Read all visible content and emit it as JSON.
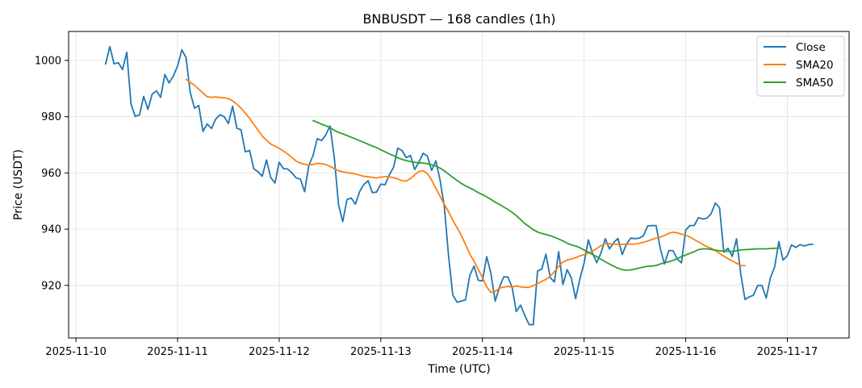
{
  "chart_data": {
    "type": "line",
    "title": "BNBUSDT — 168 candles (1h)",
    "xlabel": "Time (UTC)",
    "ylabel": "Price (USDT)",
    "x_tick_labels": [
      "2025-11-10",
      "2025-11-11",
      "2025-11-12",
      "2025-11-13",
      "2025-11-14",
      "2025-11-15",
      "2025-11-16",
      "2025-11-17"
    ],
    "y_ticks": [
      920,
      940,
      960,
      980,
      1000
    ],
    "xlim": [
      "2025-11-09T22:16",
      "2025-11-17T14:35"
    ],
    "ylim": [
      901.3,
      1010.3
    ],
    "grid": true,
    "legend_position": "top-right",
    "colors": {
      "close": "#1f77b4",
      "sma20": "#ff7f0e",
      "sma50": "#2ca02c"
    },
    "x_start": "2025-11-10T07:00",
    "x_step_hours": 1,
    "series": [
      {
        "name": "Close",
        "color": "#1f77b4",
        "values": [
          998.7,
          1004.9,
          998.8,
          999.2,
          996.8,
          1002.9,
          984.5,
          980.1,
          980.6,
          987.2,
          982.6,
          988.0,
          989.2,
          986.9,
          995.0,
          992.0,
          994.5,
          998.0,
          1003.8,
          1001.0,
          988.6,
          983.0,
          984.0,
          974.8,
          977.4,
          975.8,
          979.1,
          980.7,
          980.0,
          977.6,
          983.7,
          975.9,
          975.3,
          967.5,
          968.0,
          961.5,
          960.4,
          958.8,
          964.6,
          958.4,
          956.4,
          963.8,
          961.5,
          961.4,
          960.0,
          958.2,
          957.8,
          953.3,
          962.6,
          966.2,
          972.2,
          971.5,
          973.5,
          976.7,
          965.7,
          948.8,
          942.7,
          950.5,
          951.1,
          948.9,
          953.4,
          955.9,
          957.2,
          953.0,
          953.2,
          956.0,
          955.8,
          959.3,
          962.0,
          968.8,
          968.0,
          965.4,
          966.2,
          961.2,
          963.9,
          967.0,
          966.0,
          960.9,
          964.3,
          957.4,
          948.0,
          930.4,
          916.6,
          914.0,
          914.4,
          914.9,
          923.5,
          926.9,
          921.8,
          921.6,
          930.2,
          924.3,
          914.4,
          919.2,
          923.0,
          923.0,
          919.3,
          910.7,
          913.0,
          909.3,
          906.1,
          906.0,
          925.1,
          925.8,
          931.1,
          922.8,
          921.2,
          932.0,
          920.3,
          925.6,
          922.6,
          915.3,
          922.2,
          928.0,
          936.2,
          931.4,
          928.1,
          931.5,
          936.6,
          933.0,
          935.2,
          936.7,
          931.0,
          934.6,
          936.8,
          936.6,
          936.8,
          937.6,
          941.1,
          941.3,
          941.3,
          933.1,
          927.6,
          932.4,
          932.4,
          929.4,
          928.0,
          939.7,
          941.3,
          941.3,
          944.1,
          943.6,
          943.9,
          945.5,
          949.3,
          947.6,
          931.8,
          933.2,
          930.3,
          936.6,
          924.1,
          915.0,
          915.9,
          916.5,
          920.0,
          920.0,
          915.5,
          922.7,
          926.6,
          935.6,
          929.0,
          930.6,
          934.4,
          933.5,
          934.5,
          934.0,
          934.5,
          934.7
        ]
      },
      {
        "name": "SMA20",
        "color": "#ff7f0e",
        "values": [
          null,
          null,
          null,
          null,
          null,
          null,
          null,
          null,
          null,
          null,
          null,
          null,
          null,
          null,
          null,
          null,
          null,
          null,
          null,
          993.3,
          992.2,
          991.2,
          989.8,
          988.4,
          987.1,
          986.9,
          987.0,
          986.8,
          986.7,
          986.4,
          985.6,
          984.4,
          983.0,
          981.3,
          979.4,
          977.3,
          975.2,
          973.1,
          971.6,
          970.3,
          969.5,
          968.7,
          967.8,
          966.7,
          965.5,
          964.2,
          963.5,
          963.1,
          962.8,
          963.0,
          963.4,
          963.3,
          963.0,
          962.3,
          961.5,
          960.8,
          960.4,
          960.1,
          959.9,
          959.6,
          959.2,
          958.8,
          958.6,
          958.4,
          958.2,
          958.5,
          958.7,
          958.6,
          958.3,
          957.9,
          957.2,
          957.1,
          958.0,
          959.3,
          960.5,
          960.8,
          959.8,
          957.5,
          954.5,
          951.6,
          948.8,
          946.2,
          943.2,
          940.5,
          937.8,
          934.5,
          931.2,
          928.6,
          925.7,
          922.8,
          919.5,
          917.5,
          917.9,
          919.0,
          919.4,
          919.6,
          919.4,
          919.8,
          919.5,
          919.3,
          919.3,
          919.9,
          920.6,
          921.5,
          922.1,
          923.3,
          924.9,
          926.7,
          928.3,
          929.0,
          929.4,
          929.8,
          930.5,
          930.9,
          931.5,
          932.2,
          933.1,
          934.2,
          934.8,
          934.8,
          934.7,
          934.6,
          934.6,
          934.7,
          934.7,
          934.7,
          935.0,
          935.3,
          935.8,
          936.3,
          936.8,
          937.2,
          937.8,
          938.5,
          938.9,
          938.7,
          938.2,
          937.9,
          937.2,
          936.3,
          935.5,
          934.6,
          933.8,
          933.2,
          932.4,
          931.4,
          930.4,
          929.5,
          928.7,
          927.9,
          927.1,
          927.0
        ]
      },
      {
        "name": "SMA50",
        "color": "#2ca02c",
        "values": [
          null,
          null,
          null,
          null,
          null,
          null,
          null,
          null,
          null,
          null,
          null,
          null,
          null,
          null,
          null,
          null,
          null,
          null,
          null,
          null,
          null,
          null,
          null,
          null,
          null,
          null,
          null,
          null,
          null,
          null,
          null,
          null,
          null,
          null,
          null,
          null,
          null,
          null,
          null,
          null,
          null,
          null,
          null,
          null,
          null,
          null,
          null,
          null,
          null,
          978.6,
          978.0,
          977.3,
          976.8,
          976.1,
          975.2,
          974.4,
          973.9,
          973.3,
          972.7,
          972.1,
          971.5,
          970.9,
          970.2,
          969.6,
          969.0,
          968.2,
          967.5,
          966.8,
          966.1,
          965.4,
          964.8,
          964.4,
          964.0,
          963.8,
          963.6,
          963.5,
          963.3,
          962.9,
          962.4,
          961.7,
          960.7,
          959.6,
          958.4,
          957.3,
          956.3,
          955.4,
          954.7,
          953.9,
          953.0,
          952.3,
          951.5,
          950.6,
          949.6,
          948.8,
          947.9,
          947.0,
          946.0,
          944.8,
          943.4,
          942.0,
          940.9,
          939.8,
          939.0,
          938.5,
          938.1,
          937.7,
          937.1,
          936.5,
          935.8,
          935.0,
          934.4,
          934.0,
          933.4,
          932.6,
          931.8,
          931.0,
          930.2,
          929.3,
          928.4,
          927.6,
          926.8,
          926.1,
          925.6,
          925.4,
          925.5,
          925.8,
          926.2,
          926.5,
          926.8,
          926.9,
          927.1,
          927.6,
          928.0,
          928.4,
          928.9,
          929.5,
          930.2,
          930.8,
          931.4,
          932.0,
          932.7,
          933.0,
          933.0,
          932.8,
          932.5,
          932.3,
          932.2,
          932.1,
          932.1,
          932.3,
          932.6,
          932.7,
          932.8,
          932.9,
          933.0,
          933.0,
          933.0,
          933.1,
          933.2,
          933.3
        ]
      }
    ]
  }
}
